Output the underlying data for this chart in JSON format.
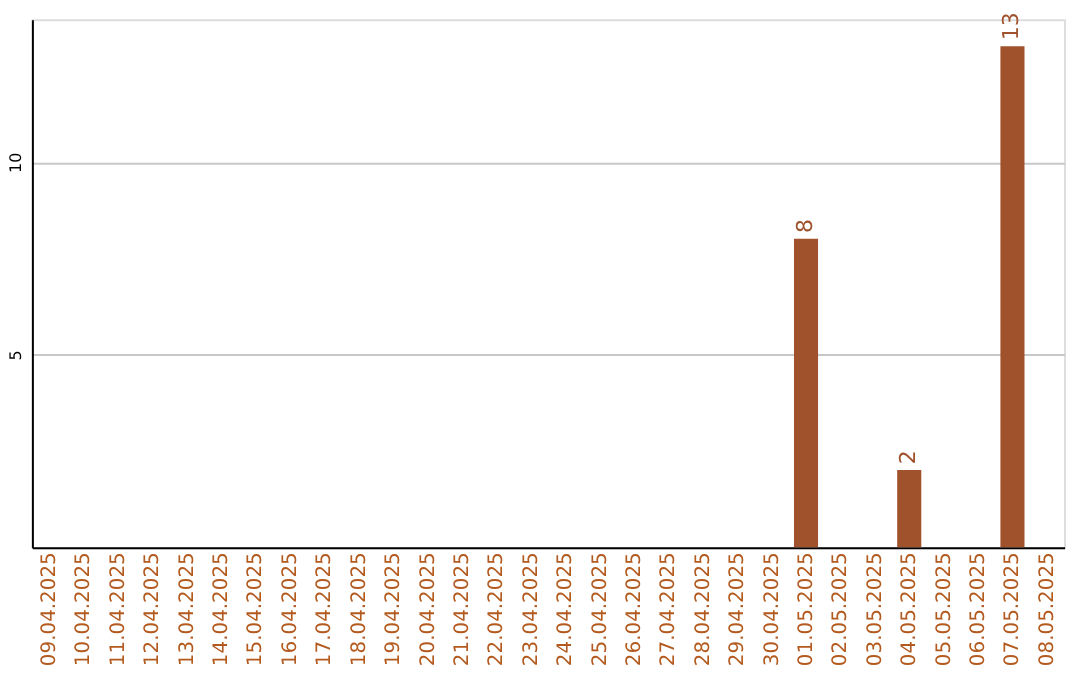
{
  "chart_data": {
    "type": "bar",
    "categories": [
      "09.04.2025",
      "10.04.2025",
      "11.04.2025",
      "12.04.2025",
      "13.04.2025",
      "14.04.2025",
      "15.04.2025",
      "16.04.2025",
      "17.04.2025",
      "18.04.2025",
      "19.04.2025",
      "20.04.2025",
      "21.04.2025",
      "22.04.2025",
      "23.04.2025",
      "24.04.2025",
      "25.04.2025",
      "26.04.2025",
      "27.04.2025",
      "28.04.2025",
      "29.04.2025",
      "30.04.2025",
      "01.05.2025",
      "02.05.2025",
      "03.05.2025",
      "04.05.2025",
      "05.05.2025",
      "06.05.2025",
      "07.05.2025",
      "08.05.2025"
    ],
    "values": [
      0,
      0,
      0,
      0,
      0,
      0,
      0,
      0,
      0,
      0,
      0,
      0,
      0,
      0,
      0,
      0,
      0,
      0,
      0,
      0,
      0,
      0,
      8,
      0,
      0,
      2,
      0,
      0,
      13,
      0
    ],
    "value_labels": [
      null,
      null,
      null,
      null,
      null,
      null,
      null,
      null,
      null,
      null,
      null,
      null,
      null,
      null,
      null,
      null,
      null,
      null,
      null,
      null,
      null,
      null,
      "8",
      null,
      null,
      "2",
      null,
      null,
      "13",
      null
    ],
    "color": "#a0522d",
    "ylim": [
      0,
      13.7
    ],
    "yticks": [
      5,
      10
    ],
    "grid": "y"
  }
}
